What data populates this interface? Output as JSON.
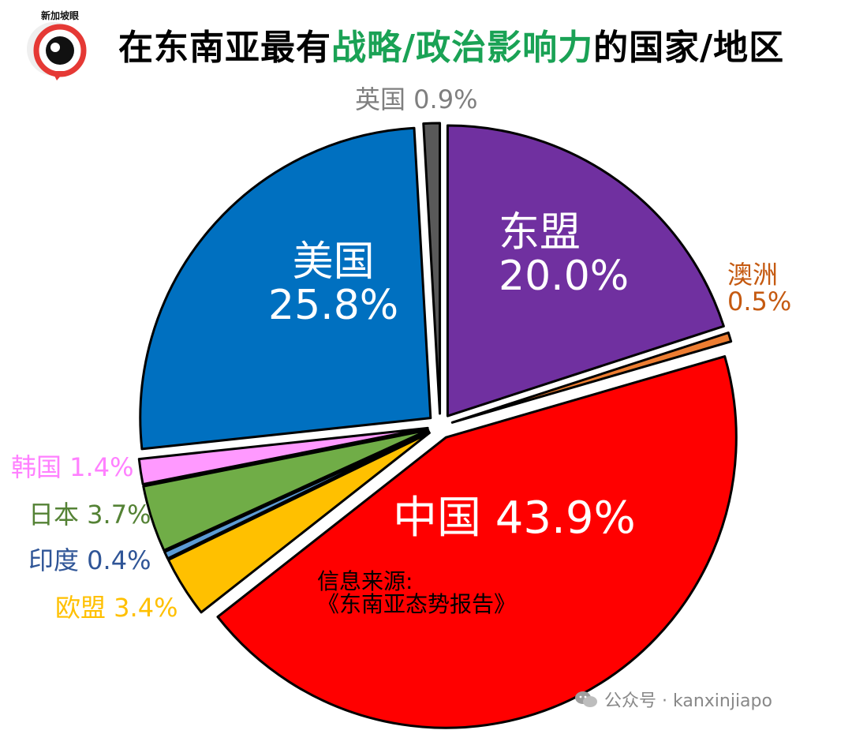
{
  "header": {
    "logo_text": "新加坡眼",
    "title_pre": "在东南亚最有",
    "title_highlight": "战略/政治影响力",
    "title_post": "的国家/地区"
  },
  "colors": {
    "highlight": "#1aa255"
  },
  "chart_data": {
    "type": "pie",
    "title": "在东南亚最有战略/政治影响力的国家/地区",
    "unit": "%",
    "slices": [
      {
        "name": "东盟",
        "value": 20.0,
        "label": "20.0%",
        "color": "#7030a0"
      },
      {
        "name": "澳洲",
        "value": 0.5,
        "label": "0.5%",
        "color": "#ed7d31"
      },
      {
        "name": "中国",
        "value": 43.9,
        "label": "43.9%",
        "color": "#ff0000"
      },
      {
        "name": "欧盟",
        "value": 3.4,
        "label": "3.4%",
        "color": "#ffc000"
      },
      {
        "name": "印度",
        "value": 0.4,
        "label": "0.4%",
        "color": "#5b9bd5"
      },
      {
        "name": "日本",
        "value": 3.7,
        "label": "3.7%",
        "color": "#70ad47"
      },
      {
        "name": "韩国",
        "value": 1.4,
        "label": "1.4%",
        "color": "#ff99ff"
      },
      {
        "name": "美国",
        "value": 25.8,
        "label": "25.8%",
        "color": "#0070c0"
      },
      {
        "name": "英国",
        "value": 0.9,
        "label": "0.9%",
        "color": "#595959"
      }
    ],
    "annotation": {
      "line1": "信息来源:",
      "line2": "《东南亚态势报告》"
    }
  },
  "labels": {
    "asean_name": "东盟",
    "asean_pct": "20.0%",
    "australia_name": "澳洲",
    "australia_pct": "0.5%",
    "china": "中国 43.9%",
    "eu": "欧盟 3.4%",
    "india": "印度 0.4%",
    "japan": "日本 3.7%",
    "korea": "韩国 1.4%",
    "usa_name": "美国",
    "usa_pct": "25.8%",
    "uk": "英国 0.9%"
  },
  "watermark": {
    "text": "公众号 · kanxinjiapo"
  }
}
